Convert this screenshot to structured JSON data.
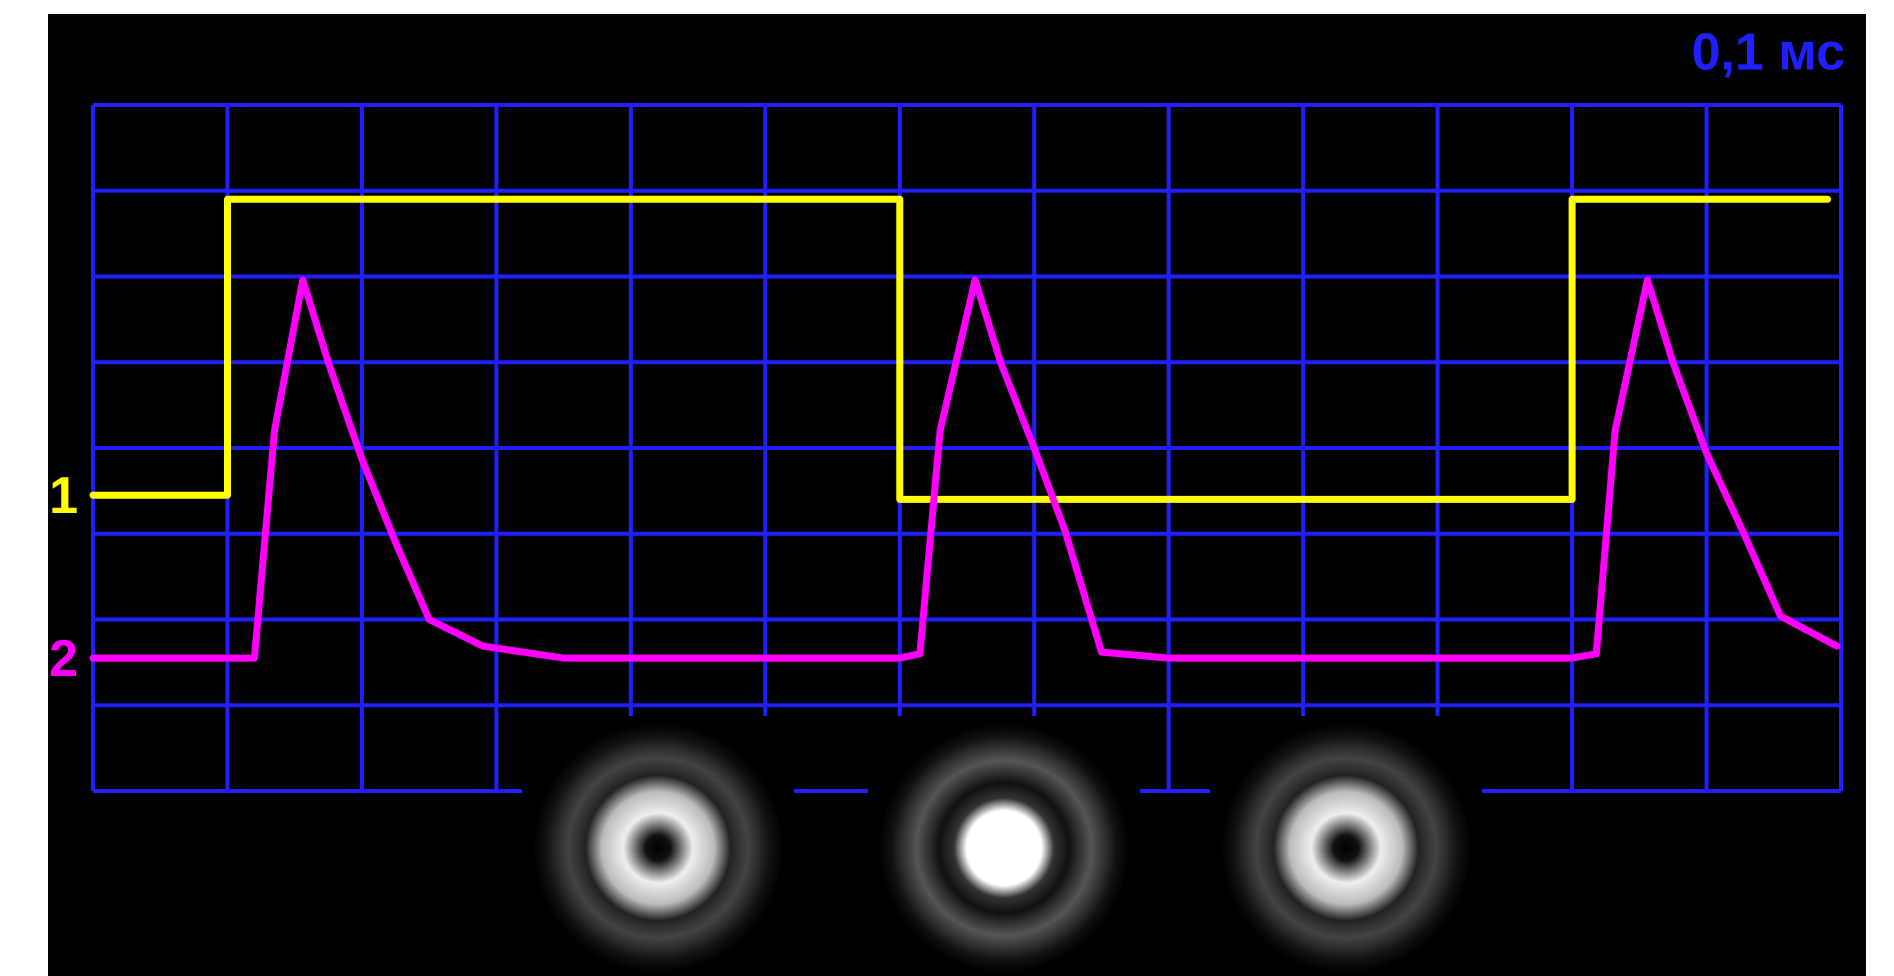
{
  "chart_data": {
    "type": "line",
    "xlabel": "0,1 мс",
    "xlim": [
      0,
      13
    ],
    "ylim": [
      0,
      8
    ],
    "xticks": [
      0,
      1,
      2,
      3,
      4,
      5,
      6,
      7,
      8,
      9,
      10,
      11,
      12,
      13
    ],
    "yticks": [
      0,
      1,
      2,
      3,
      4,
      5,
      6,
      7,
      8
    ],
    "grid": true,
    "grid_color": "#1f1fff",
    "series": [
      {
        "name": "1",
        "color": "#ffff00",
        "x": [
          0,
          1,
          1,
          6,
          6,
          11,
          11,
          12.9
        ],
        "values": [
          3.45,
          3.45,
          6.9,
          6.9,
          3.4,
          3.4,
          6.9,
          6.9
        ]
      },
      {
        "name": "2",
        "color": "#ff00ff",
        "x": [
          0,
          1.2,
          1.35,
          1.56,
          1.75,
          2.0,
          2.25,
          2.5,
          2.9,
          3.5,
          6.0,
          6.15,
          6.3,
          6.56,
          6.75,
          7.0,
          7.23,
          7.5,
          8.0,
          11.0,
          11.18,
          11.32,
          11.56,
          11.75,
          12.0,
          12.27,
          12.55,
          12.97
        ],
        "values": [
          1.55,
          1.55,
          4.2,
          5.96,
          5.0,
          3.87,
          2.9,
          2.0,
          1.69,
          1.55,
          1.55,
          1.6,
          4.2,
          5.96,
          5.0,
          4.0,
          3.03,
          1.62,
          1.55,
          1.55,
          1.6,
          4.2,
          5.96,
          5.0,
          3.94,
          3.03,
          2.04,
          1.69
        ]
      }
    ]
  }
}
